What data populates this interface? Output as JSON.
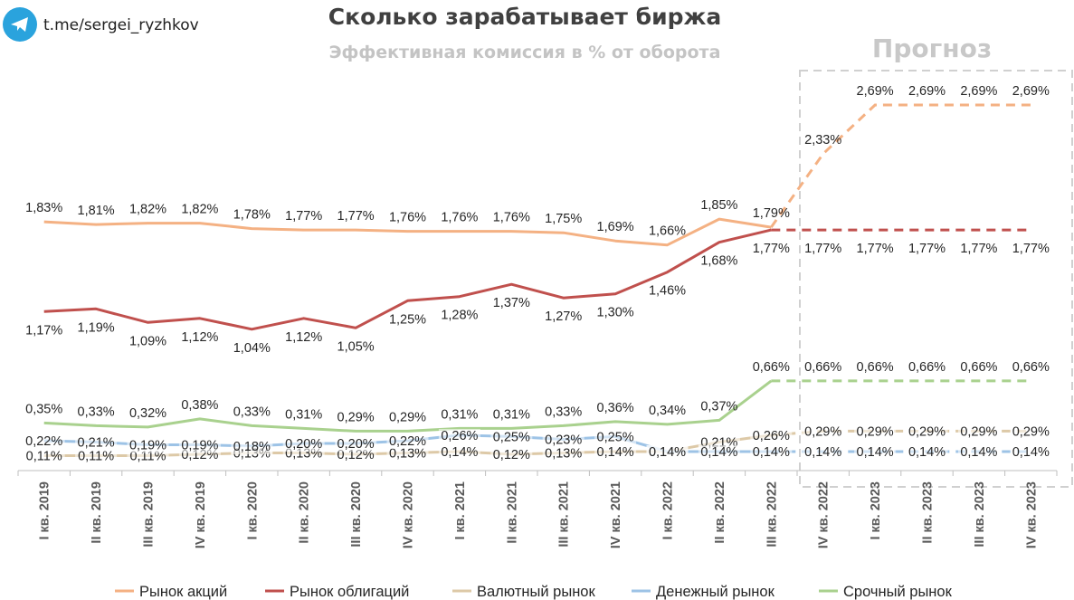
{
  "header": {
    "handle": "t.me/sergei_ryzhkov",
    "title": "Сколько зарабатывает биржа",
    "subtitle": "Эффективная комиссия в % от оборота",
    "forecast_label": "Прогноз"
  },
  "colors": {
    "telegram": "#2aa3dd",
    "forecast_box": "#d0d0d0",
    "axis": "#bfbfbf"
  },
  "chart_data": {
    "type": "line",
    "title": "Сколько зарабатывает биржа",
    "subtitle": "Эффективная комиссия в % от оборота",
    "categories": [
      "I кв. 2019",
      "II кв. 2019",
      "III кв. 2019",
      "IV кв. 2019",
      "I кв. 2020",
      "II кв. 2020",
      "III кв. 2020",
      "IV кв. 2020",
      "I кв. 2021",
      "II кв. 2021",
      "III кв. 2021",
      "IV кв. 2021",
      "I кв. 2022",
      "II кв. 2022",
      "III кв. 2022",
      "IV кв. 2022",
      "I кв. 2023",
      "II кв. 2023",
      "III кв. 2023",
      "IV кв. 2023"
    ],
    "forecast_start_index": 14,
    "ylim": [
      0,
      3
    ],
    "grid": false,
    "legend_position": "bottom",
    "series": [
      {
        "name": "Рынок акций",
        "color": "#f4b183",
        "label_pos": "above",
        "values": [
          1.83,
          1.81,
          1.82,
          1.82,
          1.78,
          1.77,
          1.77,
          1.76,
          1.76,
          1.76,
          1.75,
          1.69,
          1.66,
          1.85,
          1.79,
          2.33,
          2.69,
          2.69,
          2.69,
          2.69
        ],
        "labels": [
          "1,83%",
          "1,81%",
          "1,82%",
          "1,82%",
          "1,78%",
          "1,77%",
          "1,77%",
          "1,76%",
          "1,76%",
          "1,76%",
          "1,75%",
          "1,69%",
          "1,66%",
          "1,85%",
          "1,79%",
          "2,33%",
          "2,69%",
          "2,69%",
          "2,69%",
          "2,69%"
        ]
      },
      {
        "name": "Рынок облигаций",
        "color": "#c0504d",
        "label_pos": "below",
        "values": [
          1.17,
          1.19,
          1.09,
          1.12,
          1.04,
          1.12,
          1.05,
          1.25,
          1.28,
          1.37,
          1.27,
          1.3,
          1.46,
          1.68,
          1.77,
          1.77,
          1.77,
          1.77,
          1.77,
          1.77
        ],
        "labels": [
          "1,17%",
          "1,19%",
          "1,09%",
          "1,12%",
          "1,04%",
          "1,12%",
          "1,05%",
          "1,25%",
          "1,28%",
          "1,37%",
          "1,27%",
          "1,30%",
          "1,46%",
          "1,68%",
          "1,77%",
          "1,77%",
          "1,77%",
          "1,77%",
          "1,77%",
          "1,77%"
        ]
      },
      {
        "name": "Валютный рынок",
        "color": "#ddc9a7",
        "label_pos": "center",
        "values": [
          0.11,
          0.11,
          0.11,
          0.12,
          0.13,
          0.13,
          0.12,
          0.13,
          0.14,
          0.12,
          0.13,
          0.14,
          0.14,
          0.21,
          0.26,
          0.29,
          0.29,
          0.29,
          0.29,
          0.29
        ],
        "labels": [
          "0,11%",
          "0,11%",
          "0,11%",
          "0,12%",
          "0,13%",
          "0,13%",
          "0,12%",
          "0,13%",
          "0,14%",
          "0,12%",
          "0,13%",
          "0,14%",
          "0,14%",
          "0,21%",
          "0,26%",
          "0,29%",
          "0,29%",
          "0,29%",
          "0,29%",
          "0,29%"
        ]
      },
      {
        "name": "Денежный рынок",
        "color": "#9dc3e6",
        "label_pos": "center",
        "values": [
          0.22,
          0.21,
          0.19,
          0.19,
          0.18,
          0.2,
          0.2,
          0.22,
          0.26,
          0.25,
          0.23,
          0.25,
          0.14,
          0.14,
          0.14,
          0.14,
          0.14,
          0.14,
          0.14,
          0.14
        ],
        "labels": [
          "0,22%",
          "0,21%",
          "0,19%",
          "0,19%",
          "0,18%",
          "0,20%",
          "0,20%",
          "0,22%",
          "0,26%",
          "0,25%",
          "0,23%",
          "0,25%",
          "0,14%",
          "0,14%",
          "0,14%",
          "0,14%",
          "0,14%",
          "0,14%",
          "0,14%",
          "0,14%"
        ]
      },
      {
        "name": "Срочный рынок",
        "color": "#a9d18e",
        "label_pos": "above",
        "values": [
          0.35,
          0.33,
          0.32,
          0.38,
          0.33,
          0.31,
          0.29,
          0.29,
          0.31,
          0.31,
          0.33,
          0.36,
          0.34,
          0.37,
          0.66,
          0.66,
          0.66,
          0.66,
          0.66,
          0.66
        ],
        "labels": [
          "0,35%",
          "0,33%",
          "0,32%",
          "0,38%",
          "0,33%",
          "0,31%",
          "0,29%",
          "0,29%",
          "0,31%",
          "0,31%",
          "0,33%",
          "0,36%",
          "0,34%",
          "0,37%",
          "0,66%",
          "0,66%",
          "0,66%",
          "0,66%",
          "0,66%",
          "0,66%"
        ]
      }
    ]
  }
}
